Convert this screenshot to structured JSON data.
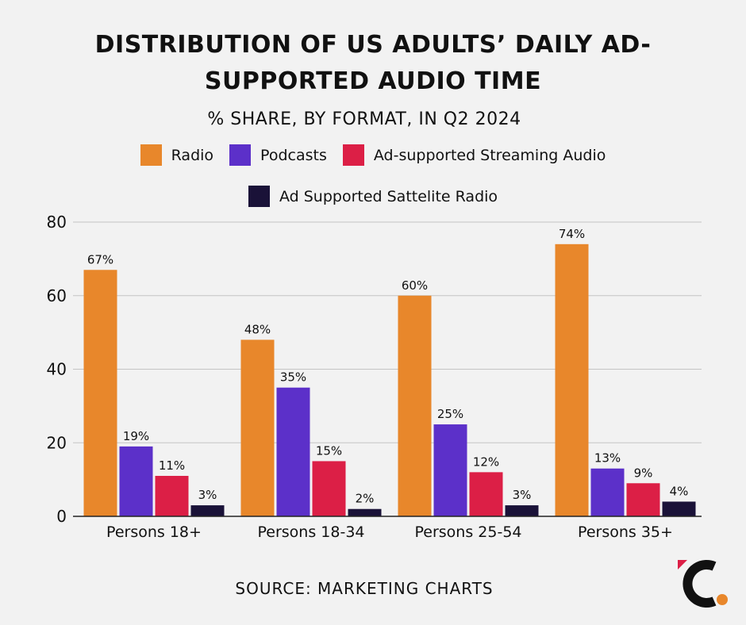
{
  "title_line1": "DISTRIBUTION OF US ADULTS’ DAILY AD-",
  "title_line2": "SUPPORTED AUDIO TIME",
  "subtitle": "% SHARE, BY FORMAT, IN Q2 2024",
  "source": "SOURCE: MARKETING CHARTS",
  "chart_data": {
    "type": "bar",
    "title": "DISTRIBUTION OF US ADULTS’ DAILY AD-SUPPORTED AUDIO TIME",
    "subtitle": "% SHARE, BY FORMAT, IN Q2 2024",
    "categories": [
      "Persons 18+",
      "Persons 18-34",
      "Persons 25-54",
      "Persons 35+"
    ],
    "series": [
      {
        "name": "Radio",
        "color": "#e8872b",
        "values": [
          67,
          48,
          60,
          74
        ],
        "labels": [
          "67%",
          "48%",
          "60%",
          "74%"
        ]
      },
      {
        "name": "Podcasts",
        "color": "#5c30c9",
        "values": [
          19,
          35,
          25,
          13
        ],
        "labels": [
          "19%",
          "35%",
          "25%",
          "13%"
        ]
      },
      {
        "name": "Ad-supported Streaming Audio",
        "color": "#dc1f46",
        "values": [
          11,
          15,
          12,
          9
        ],
        "labels": [
          "11%",
          "15%",
          "12%",
          "9%"
        ]
      },
      {
        "name": "Ad Supported Sattelite Radio",
        "color": "#1a1238",
        "values": [
          3,
          2,
          3,
          4
        ],
        "labels": [
          "3%",
          "2%",
          "3%",
          "4%"
        ]
      }
    ],
    "yticks": [
      0,
      20,
      40,
      60,
      80
    ],
    "ylim": [
      0,
      80
    ],
    "grid": true,
    "legend_position": "top",
    "xlabel": "",
    "ylabel": ""
  }
}
